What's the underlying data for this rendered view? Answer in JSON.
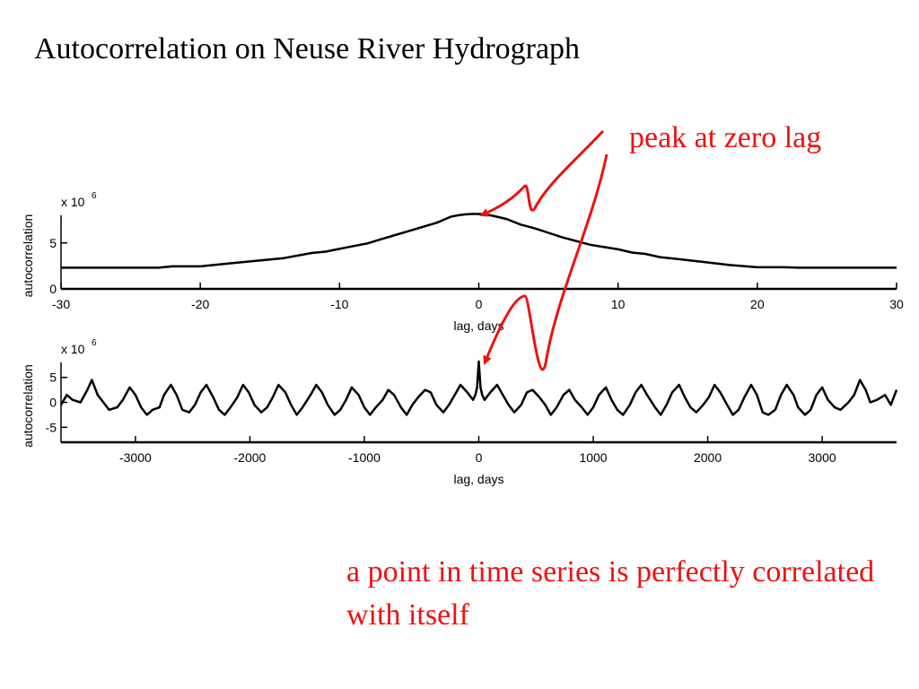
{
  "slide": {
    "title": "Autocorrelation on Neuse River Hydrograph",
    "annotation_peak": "peak at zero lag",
    "annotation_point": "a point in time series is perfectly correlated with itself",
    "annotation_color": "#ee1111"
  },
  "chart_data": [
    {
      "type": "line",
      "xlabel": "lag, days",
      "ylabel": "autocorrelation",
      "multiplier_label": "x 10",
      "multiplier_exp": "6",
      "xlim": [
        -30,
        30
      ],
      "ylim": [
        0,
        8
      ],
      "xticks": [
        -30,
        -20,
        -10,
        0,
        10,
        20,
        30
      ],
      "xtick_labels": [
        "-30",
        "-20",
        "-10",
        "0",
        "10",
        "20",
        "30"
      ],
      "yticks": [
        0,
        5
      ],
      "ytick_labels": [
        "0",
        "5"
      ],
      "series": [
        {
          "x": [
            -30,
            -23,
            -22,
            -20,
            -18,
            -16,
            -14,
            -12,
            -11,
            -10,
            -9,
            -8,
            -7,
            -6,
            -5,
            -4,
            -3,
            -2,
            -1.5,
            -1,
            -0.5,
            0,
            0.5,
            1,
            2,
            3,
            4,
            5,
            6,
            7,
            8,
            9,
            10,
            11,
            12,
            13,
            14,
            16,
            18,
            20,
            22,
            23,
            30
          ],
          "y": [
            2.3,
            2.3,
            2.45,
            2.45,
            2.75,
            3.05,
            3.35,
            3.9,
            4.05,
            4.35,
            4.65,
            4.95,
            5.4,
            5.85,
            6.3,
            6.75,
            7.2,
            7.85,
            8.0,
            8.1,
            8.15,
            8.15,
            8.1,
            7.95,
            7.6,
            7.0,
            6.6,
            6.1,
            5.6,
            5.2,
            4.8,
            4.55,
            4.3,
            3.95,
            3.8,
            3.45,
            3.3,
            2.95,
            2.6,
            2.35,
            2.35,
            2.3,
            2.3
          ]
        }
      ]
    },
    {
      "type": "line",
      "xlabel": "lag, days",
      "ylabel": "autocorrelation",
      "multiplier_label": "x 10",
      "multiplier_exp": "6",
      "xlim": [
        -3650,
        3650
      ],
      "ylim": [
        -8,
        8
      ],
      "xticks": [
        -3000,
        -2000,
        -1000,
        0,
        1000,
        2000,
        3000
      ],
      "xtick_labels": [
        "-3000",
        "-2000",
        "-1000",
        "0",
        "1000",
        "2000",
        "3000"
      ],
      "yticks": [
        -5,
        0,
        5
      ],
      "ytick_labels": [
        "-5",
        "0",
        "5"
      ],
      "series": [
        {
          "x": [
            -3650,
            -3600,
            -3550,
            -3480,
            -3420,
            -3380,
            -3330,
            -3280,
            -3230,
            -3160,
            -3110,
            -3050,
            -3000,
            -2950,
            -2900,
            -2850,
            -2790,
            -2750,
            -2690,
            -2640,
            -2590,
            -2530,
            -2480,
            -2430,
            -2380,
            -2320,
            -2270,
            -2220,
            -2170,
            -2110,
            -2060,
            -2010,
            -1960,
            -1900,
            -1850,
            -1800,
            -1750,
            -1690,
            -1640,
            -1590,
            -1540,
            -1470,
            -1420,
            -1370,
            -1320,
            -1260,
            -1210,
            -1160,
            -1110,
            -1050,
            -1000,
            -950,
            -900,
            -840,
            -790,
            -740,
            -680,
            -630,
            -580,
            -530,
            -470,
            -420,
            -370,
            -310,
            -260,
            -210,
            -160,
            -100,
            -50,
            -30,
            -15,
            0,
            15,
            30,
            50,
            100,
            160,
            210,
            260,
            310,
            370,
            420,
            470,
            530,
            580,
            630,
            680,
            740,
            790,
            840,
            900,
            950,
            1000,
            1050,
            1110,
            1160,
            1210,
            1260,
            1320,
            1370,
            1420,
            1470,
            1540,
            1590,
            1640,
            1690,
            1750,
            1800,
            1850,
            1900,
            1960,
            2010,
            2060,
            2110,
            2170,
            2220,
            2270,
            2320,
            2380,
            2430,
            2480,
            2530,
            2590,
            2640,
            2690,
            2750,
            2790,
            2850,
            2900,
            2950,
            3000,
            3050,
            3110,
            3160,
            3230,
            3280,
            3330,
            3380,
            3420,
            3480,
            3550,
            3600,
            3650
          ],
          "y": [
            -0.5,
            1.5,
            0.5,
            0.0,
            2.5,
            4.5,
            1.5,
            0.0,
            -1.5,
            -1.0,
            0.5,
            3.0,
            1.5,
            -1.0,
            -2.5,
            -1.5,
            -1.0,
            1.5,
            3.5,
            1.5,
            -1.5,
            -2.0,
            -0.5,
            2.0,
            3.5,
            1.0,
            -1.5,
            -2.5,
            -1.0,
            1.0,
            3.5,
            2.0,
            -0.5,
            -2.0,
            -1.0,
            1.0,
            3.5,
            2.0,
            -0.5,
            -2.5,
            -1.0,
            1.5,
            3.5,
            2.0,
            -0.5,
            -2.5,
            -1.5,
            0.5,
            3.0,
            1.5,
            -1.0,
            -2.5,
            -1.0,
            0.5,
            2.5,
            1.5,
            -1.0,
            -2.5,
            -0.5,
            1.0,
            2.5,
            2.0,
            -0.5,
            -2.0,
            -0.5,
            1.5,
            3.5,
            2.0,
            0.5,
            1.5,
            3.0,
            8.2,
            3.0,
            1.5,
            0.5,
            2.0,
            3.5,
            1.5,
            -0.5,
            -2.0,
            -0.5,
            2.0,
            2.5,
            1.0,
            -0.5,
            -2.5,
            -1.0,
            1.5,
            2.5,
            0.5,
            -1.0,
            -2.5,
            -1.0,
            1.5,
            3.0,
            0.5,
            -1.5,
            -2.5,
            -0.5,
            2.0,
            3.5,
            1.5,
            -1.0,
            -2.5,
            -0.5,
            2.0,
            3.5,
            1.0,
            -1.0,
            -2.0,
            -0.5,
            1.0,
            3.5,
            2.0,
            -0.5,
            -2.5,
            -1.5,
            1.0,
            3.5,
            1.5,
            -2.0,
            -2.5,
            -1.5,
            1.5,
            3.5,
            1.5,
            -1.0,
            -2.5,
            -1.5,
            1.5,
            3.0,
            0.5,
            -1.0,
            -1.5,
            0.0,
            1.5,
            4.5,
            2.5,
            0.0,
            0.5,
            1.5,
            -0.5,
            2.5
          ]
        }
      ]
    }
  ]
}
